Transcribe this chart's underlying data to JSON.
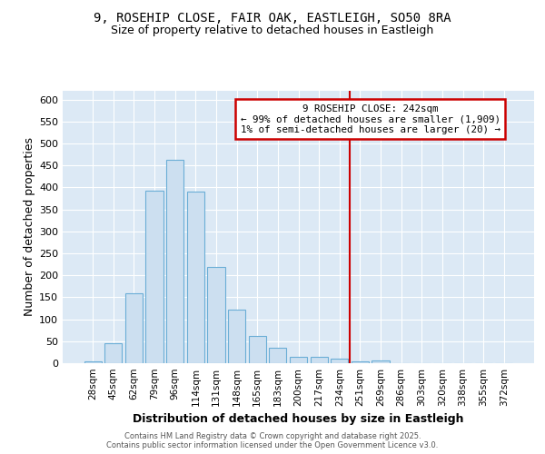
{
  "title_line1": "9, ROSEHIP CLOSE, FAIR OAK, EASTLEIGH, SO50 8RA",
  "title_line2": "Size of property relative to detached houses in Eastleigh",
  "categories": [
    "28sqm",
    "45sqm",
    "62sqm",
    "79sqm",
    "96sqm",
    "114sqm",
    "131sqm",
    "148sqm",
    "165sqm",
    "183sqm",
    "200sqm",
    "217sqm",
    "234sqm",
    "251sqm",
    "269sqm",
    "286sqm",
    "303sqm",
    "320sqm",
    "338sqm",
    "355sqm",
    "372sqm"
  ],
  "values": [
    5,
    45,
    160,
    393,
    463,
    390,
    220,
    122,
    62,
    35,
    14,
    14,
    10,
    5,
    7,
    0,
    0,
    0,
    0,
    0,
    0
  ],
  "bar_color": "#ccdff0",
  "bar_edge_color": "#6baed6",
  "plot_bg_color": "#dce9f5",
  "fig_bg_color": "#ffffff",
  "grid_color": "#ffffff",
  "ylabel": "Number of detached properties",
  "xlabel": "Distribution of detached houses by size in Eastleigh",
  "annotation_text": "9 ROSEHIP CLOSE: 242sqm\n← 99% of detached houses are smaller (1,909)\n1% of semi-detached houses are larger (20) →",
  "annotation_box_facecolor": "#ffffff",
  "annotation_box_edgecolor": "#cc0000",
  "vline_color": "#cc0000",
  "vline_x": 12.5,
  "ylim_max": 620,
  "yticks": [
    0,
    50,
    100,
    150,
    200,
    250,
    300,
    350,
    400,
    450,
    500,
    550,
    600
  ],
  "footer_line1": "Contains HM Land Registry data © Crown copyright and database right 2025.",
  "footer_line2": "Contains public sector information licensed under the Open Government Licence v3.0."
}
